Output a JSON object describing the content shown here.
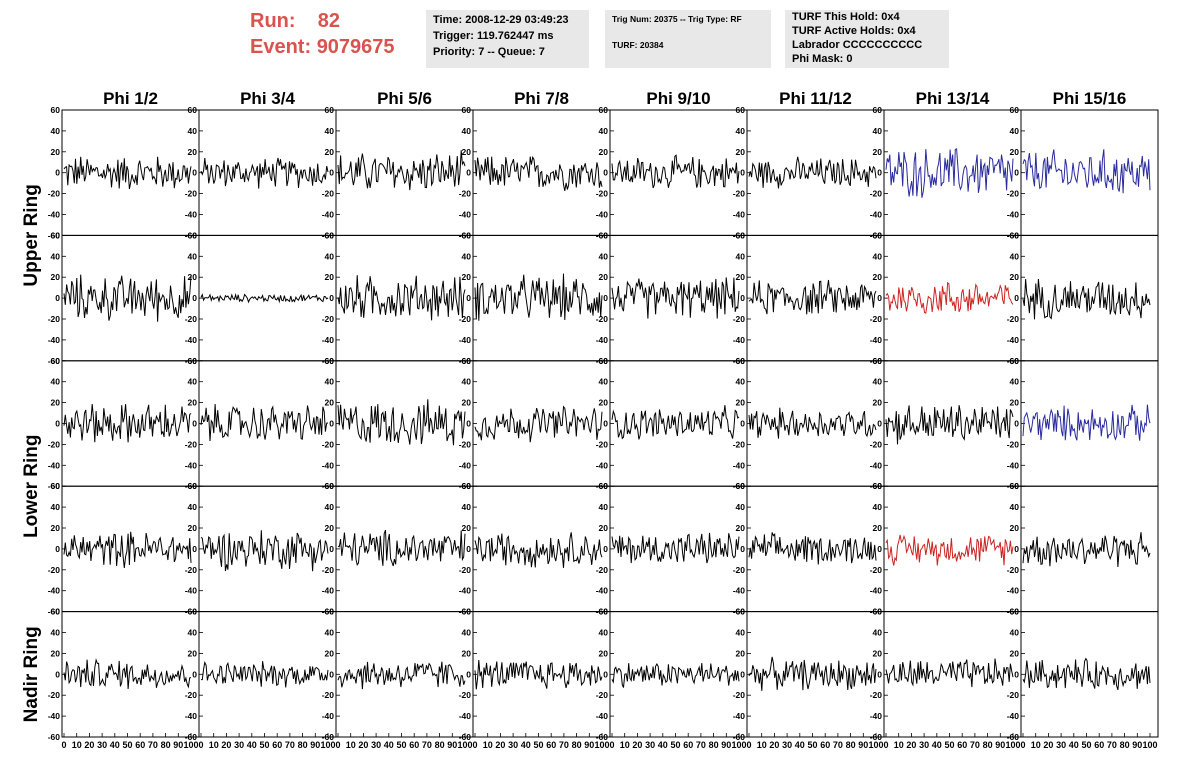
{
  "header": {
    "run_label": "Run:",
    "run_value": "82",
    "event_label": "Event:",
    "event_value": "9079675"
  },
  "info_boxes": {
    "time": "Time: 2008-12-29 03:49:23",
    "trigger": "Trigger: 119.762447 ms",
    "priority": "Priority: 7 -- Queue: 7",
    "trig_num": "Trig Num: 20375 -- Trig Type: RF",
    "turf": "TURF: 20384",
    "turf_hold": "TURF This Hold: 0x4",
    "turf_active": "TURF Active Holds: 0x4",
    "labrador": "Labrador CCCCCCCCCC",
    "phi_mask": "Phi Mask: 0"
  },
  "chart_data": {
    "type": "line",
    "columns": [
      "Phi 1/2",
      "Phi 3/4",
      "Phi 5/6",
      "Phi 7/8",
      "Phi 9/10",
      "Phi 11/12",
      "Phi 13/14",
      "Phi 15/16"
    ],
    "ring_labels": [
      "Upper Ring",
      "Lower Ring",
      "Nadir Ring"
    ],
    "rows": 5,
    "ylim": [
      -60,
      60
    ],
    "yticks": [
      60,
      40,
      20,
      0,
      -20,
      -40,
      -60
    ],
    "xlim": [
      0,
      100
    ],
    "xticks": [
      0,
      10,
      20,
      30,
      40,
      50,
      60,
      70,
      80,
      90,
      100
    ],
    "colors": {
      "default": "#000000",
      "blue": "#2a2aa0",
      "red": "#cc2222"
    },
    "trace_colors": [
      [
        "default",
        "default",
        "default",
        "default",
        "default",
        "default",
        "blue",
        "blue"
      ],
      [
        "default",
        "default",
        "default",
        "default",
        "default",
        "default",
        "red",
        "default"
      ],
      [
        "default",
        "default",
        "default",
        "default",
        "default",
        "default",
        "default",
        "blue"
      ],
      [
        "default",
        "default",
        "default",
        "default",
        "default",
        "default",
        "red",
        "default"
      ],
      [
        "default",
        "default",
        "default",
        "default",
        "default",
        "default",
        "default",
        "default"
      ]
    ],
    "amplitudes": [
      [
        14,
        12,
        16,
        14,
        13,
        12,
        20,
        18
      ],
      [
        18,
        3,
        18,
        18,
        16,
        14,
        14,
        16
      ],
      [
        16,
        15,
        18,
        14,
        13,
        12,
        16,
        14
      ],
      [
        14,
        16,
        15,
        14,
        13,
        12,
        12,
        14
      ],
      [
        12,
        10,
        12,
        12,
        10,
        12,
        12,
        12
      ]
    ],
    "points_per_trace": 100
  }
}
